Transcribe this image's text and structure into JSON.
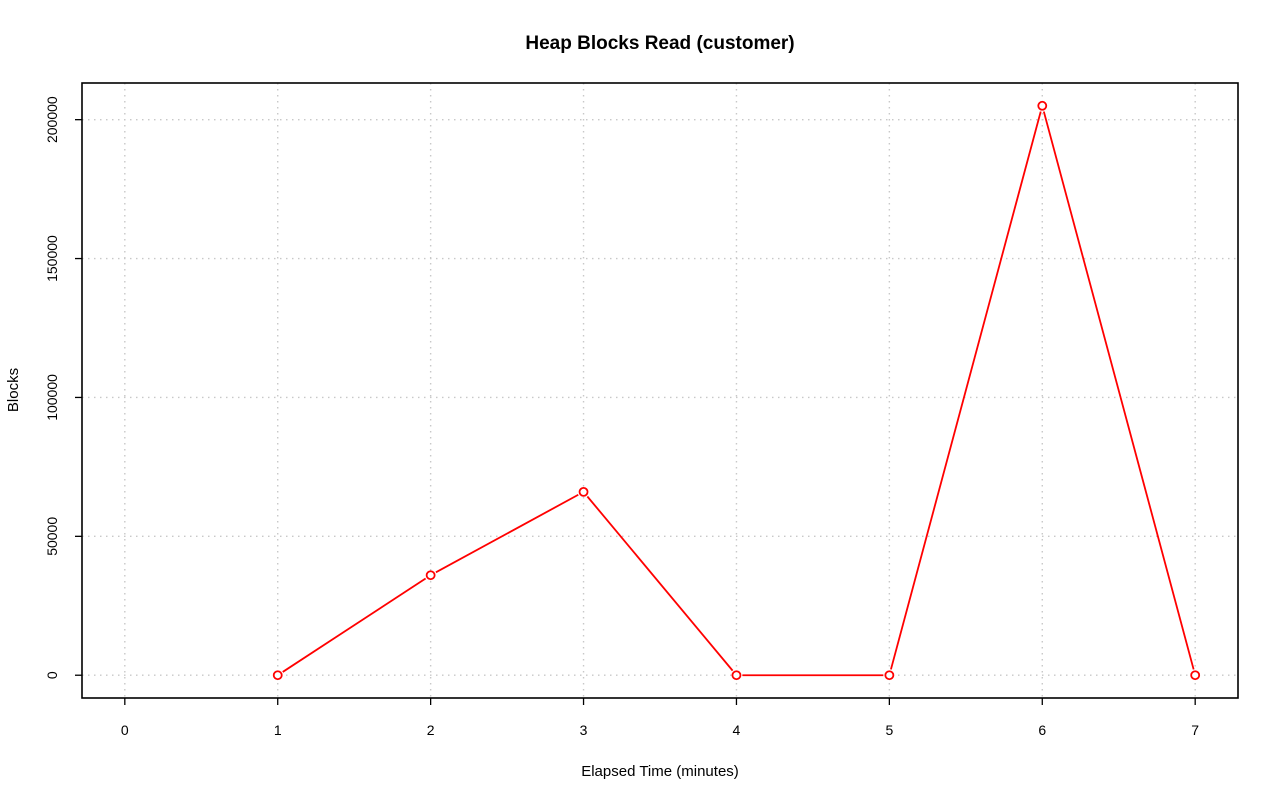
{
  "chart_data": {
    "type": "line",
    "title": "Heap Blocks Read (customer)",
    "xlabel": "Elapsed Time (minutes)",
    "ylabel": "Blocks",
    "xlim": [
      -0.28,
      7.28
    ],
    "ylim": [
      -8200,
      213200
    ],
    "x_ticks": [
      0,
      1,
      2,
      3,
      4,
      5,
      6,
      7
    ],
    "y_ticks": [
      0,
      50000,
      100000,
      150000,
      200000
    ],
    "grid": true,
    "series": [
      {
        "x": [
          1,
          2,
          3,
          4,
          5,
          6,
          7
        ],
        "values": [
          0,
          36000,
          66000,
          0,
          0,
          205000,
          0
        ],
        "color": "#ff0000",
        "marker": "open-circle"
      }
    ]
  }
}
